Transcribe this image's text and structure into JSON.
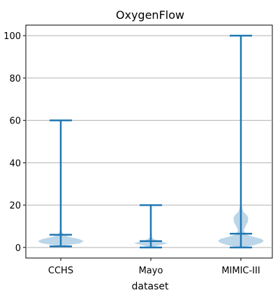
{
  "chart_data": {
    "type": "violin",
    "title": "OxygenFlow",
    "xlabel": "dataset",
    "ylabel": "",
    "categories": [
      "CCHS",
      "Mayo",
      "MIMIC-III"
    ],
    "ylim": [
      -5,
      105
    ],
    "yticks": [
      0,
      20,
      40,
      60,
      80,
      100
    ],
    "grid": "horizontal",
    "color": "#1f77b4",
    "fill_color": "#1f77b4",
    "violins": [
      {
        "name": "CCHS",
        "min": 0.5,
        "max": 60,
        "median": 6,
        "shape": [
          [
            0.5,
            0.02
          ],
          [
            1,
            0.25
          ],
          [
            2,
            0.85
          ],
          [
            3,
            1.0
          ],
          [
            4,
            0.8
          ],
          [
            5,
            0.35
          ],
          [
            6,
            0.12
          ],
          [
            8,
            0.03
          ],
          [
            20,
            0.005
          ],
          [
            60,
            0.0
          ]
        ]
      },
      {
        "name": "Mayo",
        "min": 0,
        "max": 20,
        "median": 3,
        "shape": [
          [
            0,
            0.02
          ],
          [
            1,
            0.35
          ],
          [
            2,
            0.75
          ],
          [
            3,
            0.35
          ],
          [
            4,
            0.12
          ],
          [
            5,
            0.04
          ],
          [
            6,
            0.05
          ],
          [
            7,
            0.02
          ],
          [
            10,
            0.0
          ],
          [
            20,
            0.0
          ]
        ]
      },
      {
        "name": "MIMIC-III",
        "min": 0,
        "max": 100,
        "median": 6.5,
        "shape": [
          [
            0,
            0.05
          ],
          [
            1,
            0.55
          ],
          [
            2,
            0.85
          ],
          [
            3,
            1.0
          ],
          [
            4,
            0.9
          ],
          [
            5,
            0.55
          ],
          [
            6,
            0.25
          ],
          [
            8,
            0.12
          ],
          [
            10,
            0.2
          ],
          [
            12,
            0.3
          ],
          [
            14,
            0.32
          ],
          [
            15,
            0.28
          ],
          [
            17,
            0.1
          ],
          [
            20,
            0.03
          ],
          [
            30,
            0.005
          ],
          [
            100,
            0.0
          ]
        ]
      }
    ]
  }
}
